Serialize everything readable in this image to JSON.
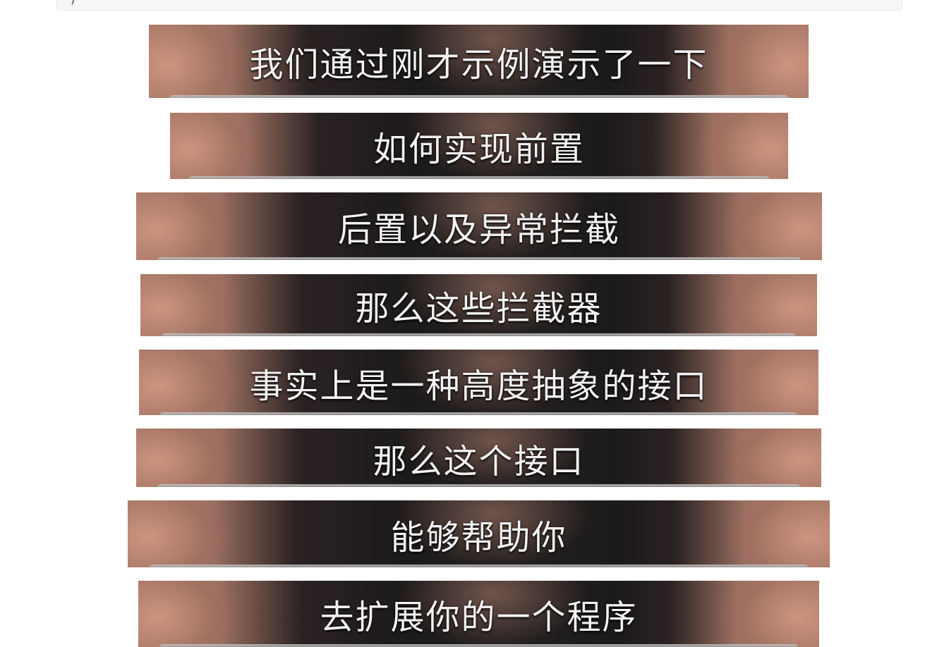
{
  "code_block": {
    "glyph": ")"
  },
  "subtitles": [
    "我们通过刚才示例演示了一下",
    "如何实现前置",
    "后置以及异常拦截",
    "那么这些拦截器",
    "事实上是一种高度抽象的接口",
    "那么这个接口",
    "能够帮助你",
    "去扩展你的一个程序"
  ]
}
